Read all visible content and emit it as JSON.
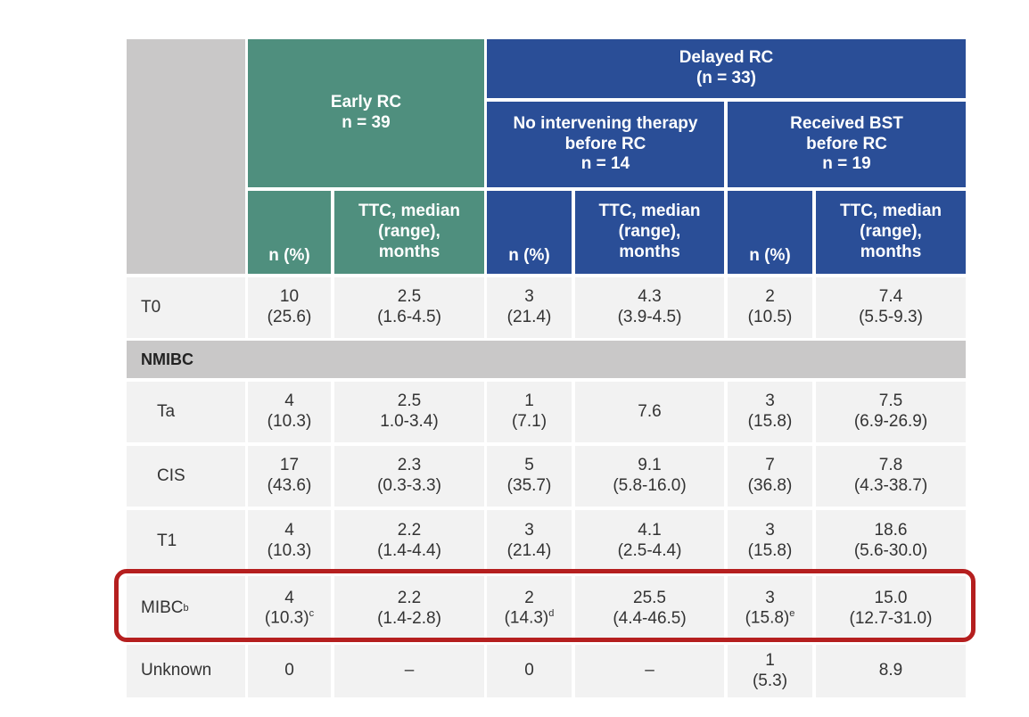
{
  "header": {
    "early_rc": {
      "title": "Early RC",
      "n": "n = 39"
    },
    "delayed_rc": {
      "title": "Delayed RC",
      "n": "(n = 33)"
    },
    "no_intervening": {
      "line1": "No intervening therapy",
      "line2": "before RC",
      "n": "n = 14"
    },
    "received_bst": {
      "line1": "Received BST",
      "line2": "before RC",
      "n": "n = 19"
    },
    "sub_n": "n (%)",
    "sub_ttc": {
      "line1": "TTC, median",
      "line2": "(range),",
      "line3": "months"
    }
  },
  "section": {
    "nmibc": "NMIBC"
  },
  "rows": [
    {
      "label": "T0",
      "early_n": [
        "10",
        "(25.6)"
      ],
      "early_ttc": [
        "2.5",
        "(1.6-4.5)"
      ],
      "noint_n": [
        "3",
        "(21.4)"
      ],
      "noint_ttc": [
        "4.3",
        "(3.9-4.5)"
      ],
      "bst_n": [
        "2",
        "(10.5)"
      ],
      "bst_ttc": [
        "7.4",
        "(5.5-9.3)"
      ]
    },
    {
      "label": "Ta",
      "early_n": [
        "4",
        "(10.3)"
      ],
      "early_ttc": [
        "2.5",
        "1.0-3.4)"
      ],
      "noint_n": [
        "1",
        "(7.1)"
      ],
      "noint_ttc": [
        "7.6",
        ""
      ],
      "bst_n": [
        "3",
        "(15.8)"
      ],
      "bst_ttc": [
        "7.5",
        "(6.9-26.9)"
      ]
    },
    {
      "label": "CIS",
      "early_n": [
        "17",
        "(43.6)"
      ],
      "early_ttc": [
        "2.3",
        "(0.3-3.3)"
      ],
      "noint_n": [
        "5",
        "(35.7)"
      ],
      "noint_ttc": [
        "9.1",
        "(5.8-16.0)"
      ],
      "bst_n": [
        "7",
        "(36.8)"
      ],
      "bst_ttc": [
        "7.8",
        "(4.3-38.7)"
      ]
    },
    {
      "label": "T1",
      "early_n": [
        "4",
        "(10.3)"
      ],
      "early_ttc": [
        "2.2",
        "(1.4-4.4)"
      ],
      "noint_n": [
        "3",
        "(21.4)"
      ],
      "noint_ttc": [
        "4.1",
        "(2.5-4.4)"
      ],
      "bst_n": [
        "3",
        "(15.8)"
      ],
      "bst_ttc": [
        "18.6",
        "(5.6-30.0)"
      ]
    },
    {
      "label": "MIBC",
      "label_sup": "b",
      "early_n": [
        "4",
        "(10.3)"
      ],
      "early_n_sup": "c",
      "early_ttc": [
        "2.2",
        "(1.4-2.8)"
      ],
      "noint_n": [
        "2",
        "(14.3)"
      ],
      "noint_n_sup": "d",
      "noint_ttc": [
        "25.5",
        "(4.4-46.5)"
      ],
      "bst_n": [
        "3",
        "(15.8)"
      ],
      "bst_n_sup": "e",
      "bst_ttc": [
        "15.0",
        "(12.7-31.0)"
      ]
    },
    {
      "label": "Unknown",
      "early_n": [
        "0",
        ""
      ],
      "early_ttc": [
        "–",
        ""
      ],
      "noint_n": [
        "0",
        ""
      ],
      "noint_ttc": [
        "–",
        ""
      ],
      "bst_n": [
        "1",
        "(5.3)"
      ],
      "bst_ttc": [
        "8.9",
        ""
      ]
    }
  ],
  "colors": {
    "early_header": "#4f8f7e",
    "delayed_header": "#2a4e97",
    "band_gray": "#c9c8c8",
    "body_cell": "#f2f2f2",
    "highlight": "#b51f1f"
  }
}
